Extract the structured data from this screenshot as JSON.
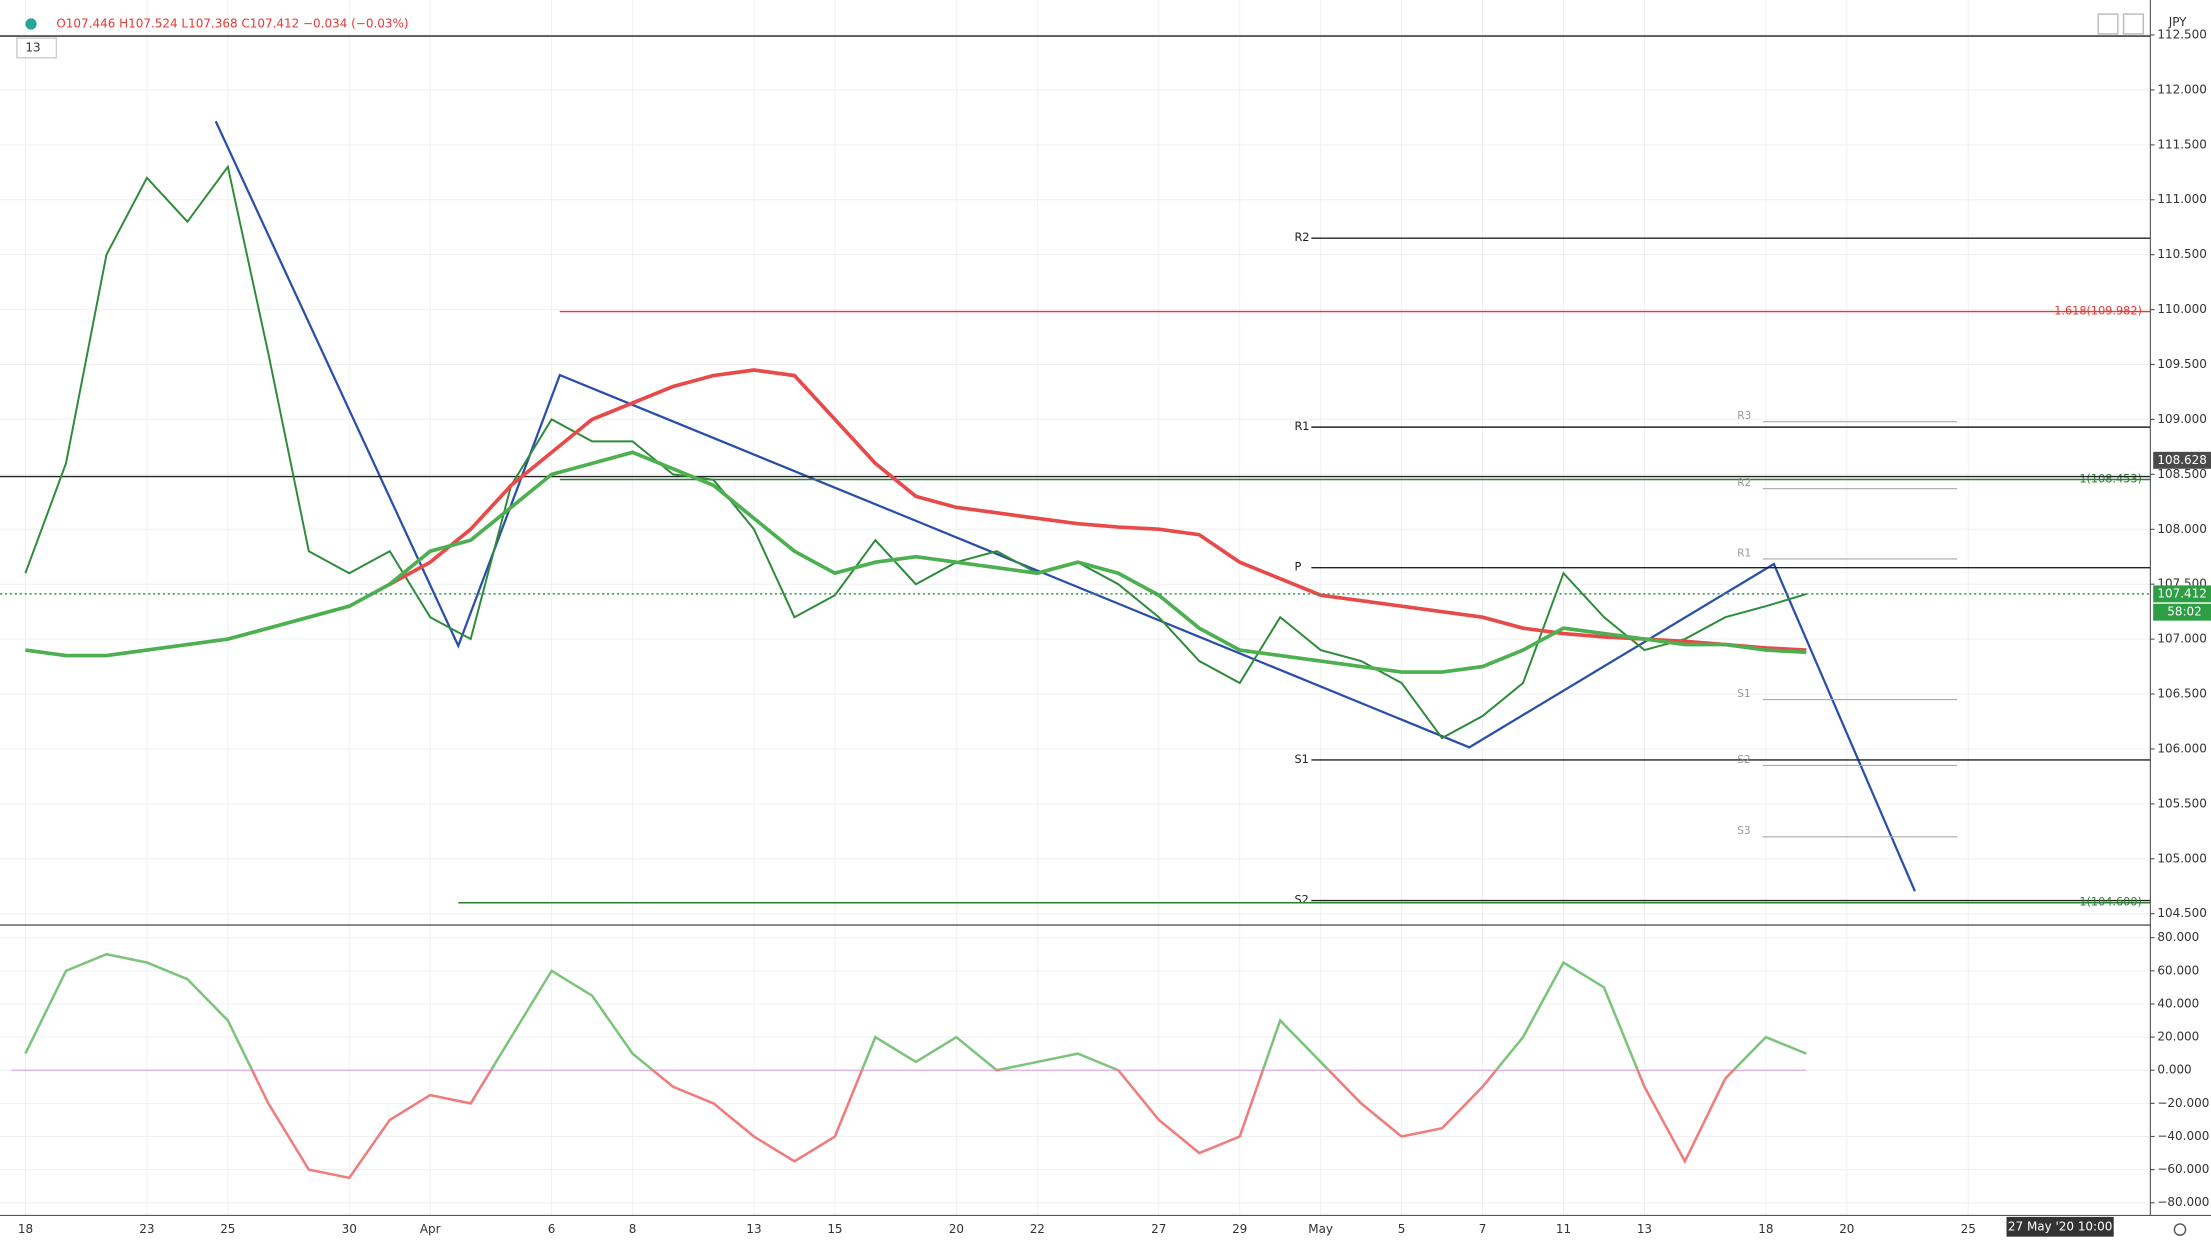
{
  "header": {
    "ohlc": "O107.446 H107.524 L107.368 C107.412 −0.034 (−0.03%)",
    "interval": "13",
    "currency": "JPY",
    "time_label": "27 May '20  10:00",
    "countdown": "58:02"
  },
  "chart_data": [
    {
      "type": "line",
      "x": [
        0,
        1,
        2,
        3,
        4,
        5,
        6,
        7,
        8,
        9,
        10,
        11,
        12,
        13,
        14,
        15,
        16,
        17,
        18,
        19,
        20,
        21,
        22,
        23,
        24,
        25,
        26,
        27,
        28,
        29,
        30,
        31,
        32,
        33,
        34,
        35,
        36,
        37,
        38,
        39,
        40,
        41,
        42,
        43,
        44
      ],
      "series": [
        {
          "color": "#2e8b3a",
          "values": [
            107.6,
            108.6,
            110.5,
            111.2,
            110.8,
            111.3,
            109.6,
            107.8,
            107.6,
            107.8,
            107.2,
            107.0,
            108.4,
            109.0,
            108.8,
            108.8,
            108.5,
            108.45,
            108.0,
            107.2,
            107.4,
            107.9,
            107.5,
            107.7,
            107.8,
            107.6,
            107.7,
            107.5,
            107.2,
            106.8,
            106.6,
            107.2,
            106.9,
            106.8,
            106.6,
            106.1,
            106.3,
            106.6,
            107.6,
            107.2,
            106.9,
            107.0,
            107.2,
            107.3,
            107.41
          ]
        },
        {
          "color": "#e84a4a",
          "values": [
            null,
            null,
            null,
            null,
            null,
            null,
            null,
            null,
            null,
            107.5,
            107.7,
            108.0,
            108.4,
            108.7,
            109.0,
            109.15,
            109.3,
            109.4,
            109.45,
            109.4,
            109.0,
            108.6,
            108.3,
            108.2,
            108.15,
            108.1,
            108.05,
            108.02,
            108.0,
            107.95,
            107.7,
            107.55,
            107.4,
            107.35,
            107.3,
            107.25,
            107.2,
            107.1,
            107.05,
            107.02,
            107.0,
            106.98,
            106.95,
            106.92,
            106.9
          ]
        },
        {
          "color": "#4caf50",
          "values": [
            106.9,
            106.85,
            106.85,
            106.9,
            106.95,
            107.0,
            107.1,
            107.2,
            107.3,
            107.5,
            107.8,
            107.9,
            108.2,
            108.5,
            108.6,
            108.7,
            108.55,
            108.4,
            108.1,
            107.8,
            107.6,
            107.7,
            107.75,
            107.7,
            107.65,
            107.6,
            107.7,
            107.6,
            107.4,
            107.1,
            106.9,
            106.85,
            106.8,
            106.75,
            106.7,
            106.7,
            106.75,
            106.9,
            107.1,
            107.05,
            107.0,
            106.95,
            106.95,
            106.9,
            106.88
          ]
        }
      ],
      "xlim": [
        -0.35,
        52.5
      ],
      "xticks": [
        {
          "value": 0,
          "label": "18"
        },
        {
          "value": 3,
          "label": "23"
        },
        {
          "value": 5,
          "label": "25"
        },
        {
          "value": 8,
          "label": "30"
        },
        {
          "value": 10,
          "label": "Apr"
        },
        {
          "value": 13,
          "label": "6"
        },
        {
          "value": 15,
          "label": "8"
        },
        {
          "value": 18,
          "label": "13"
        },
        {
          "value": 20,
          "label": "15"
        },
        {
          "value": 23,
          "label": "20"
        },
        {
          "value": 25,
          "label": "22"
        },
        {
          "value": 28,
          "label": "27"
        },
        {
          "value": 30,
          "label": "29"
        },
        {
          "value": 32,
          "label": "May"
        },
        {
          "value": 34,
          "label": "5"
        },
        {
          "value": 36,
          "label": "7"
        },
        {
          "value": 38,
          "label": "11"
        },
        {
          "value": 40,
          "label": "13"
        },
        {
          "value": 43,
          "label": "18"
        },
        {
          "value": 45,
          "label": "20"
        },
        {
          "value": 48,
          "label": "25"
        }
      ],
      "ylim": [
        104.41,
        112.69
      ],
      "yticks": [
        {
          "value": 104.5,
          "label": "104.500"
        },
        {
          "value": 105,
          "label": "105.000"
        },
        {
          "value": 105.5,
          "label": "105.500"
        },
        {
          "value": 106,
          "label": "106.000"
        },
        {
          "value": 106.5,
          "label": "106.500"
        },
        {
          "value": 107,
          "label": "107.000"
        },
        {
          "value": 107.5,
          "label": "107.500"
        },
        {
          "value": 108,
          "label": "108.000"
        },
        {
          "value": 108.5,
          "label": "108.500"
        },
        {
          "value": 109,
          "label": "109.000"
        },
        {
          "value": 109.5,
          "label": "109.500"
        },
        {
          "value": 110,
          "label": "110.000"
        },
        {
          "value": 110.5,
          "label": "110.500"
        },
        {
          "value": 111,
          "label": "111.000"
        },
        {
          "value": 111.5,
          "label": "111.500"
        },
        {
          "value": 112,
          "label": "112.000"
        },
        {
          "value": 112.5,
          "label": "112.500"
        }
      ],
      "grid": true,
      "levels": [
        {
          "label": "R2",
          "value": 110.65,
          "color": "#222222"
        },
        {
          "label": "1.618(109.982)",
          "value": 109.982,
          "color": "#e53935"
        },
        {
          "label": "R1",
          "value": 108.93,
          "color": "#222222"
        },
        {
          "label": "1(108.453)",
          "value": 108.453,
          "color": "#2e7d32"
        },
        {
          "label": "P",
          "value": 107.65,
          "color": "#222222"
        },
        {
          "label": "S1",
          "value": 105.9,
          "color": "#222222"
        },
        {
          "label": "S2",
          "value": 104.62,
          "color": "#222222"
        },
        {
          "label": "1(104.600)",
          "value": 104.6,
          "color": "#2e7d32"
        },
        {
          "value": 108.48,
          "color": "#222222"
        },
        {
          "value": 112.49,
          "color": "#222222"
        }
      ],
      "minor_pivots": [
        {
          "label": "R3",
          "value": 108.98
        },
        {
          "label": "R2",
          "value": 108.37
        },
        {
          "label": "R1",
          "value": 107.73
        },
        {
          "label": "S1",
          "value": 106.45
        },
        {
          "label": "S2",
          "value": 105.85
        },
        {
          "label": "S3",
          "value": 105.2
        }
      ],
      "price_tags": [
        {
          "value": 108.628,
          "label": "108.628",
          "color": "#4a4a4a"
        },
        {
          "value": 107.412,
          "label": "107.412",
          "color": "#2e9e44"
        }
      ]
    },
    {
      "type": "line",
      "x": [
        0,
        1,
        2,
        3,
        4,
        5,
        6,
        7,
        8,
        9,
        10,
        11,
        12,
        13,
        14,
        15,
        16,
        17,
        18,
        19,
        20,
        21,
        22,
        23,
        24,
        25,
        26,
        27,
        28,
        29,
        30,
        31,
        32,
        33,
        34,
        35,
        36,
        37,
        38,
        39,
        40,
        41,
        42,
        43,
        44
      ],
      "series": [
        {
          "values": [
            10,
            60,
            70,
            65,
            55,
            30,
            -20,
            -60,
            -65,
            -30,
            -15,
            -20,
            20,
            60,
            45,
            10,
            -10,
            -20,
            -40,
            -55,
            -40,
            20,
            5,
            20,
            0,
            5,
            10,
            0,
            -30,
            -50,
            -40,
            30,
            5,
            -20,
            -40,
            -35,
            -10,
            20,
            65,
            50,
            -10,
            -55,
            -5,
            20,
            10
          ],
          "colors": [
            "#7cc47c",
            "#f07c7c"
          ]
        }
      ],
      "xlim": [
        -0.35,
        52.5
      ],
      "ylim": [
        -87.7,
        86.8
      ],
      "yticks": [
        {
          "value": 80,
          "label": "80.000"
        },
        {
          "value": 60,
          "label": "60.000"
        },
        {
          "value": 40,
          "label": "40.000"
        },
        {
          "value": 20,
          "label": "20.000"
        },
        {
          "value": 0,
          "label": "0.000"
        },
        {
          "value": -20,
          "label": "−20.000"
        },
        {
          "value": -40,
          "label": "−40.000"
        },
        {
          "value": -60,
          "label": "−60.000"
        },
        {
          "value": -80,
          "label": "−80.000"
        }
      ],
      "grid": true
    }
  ]
}
